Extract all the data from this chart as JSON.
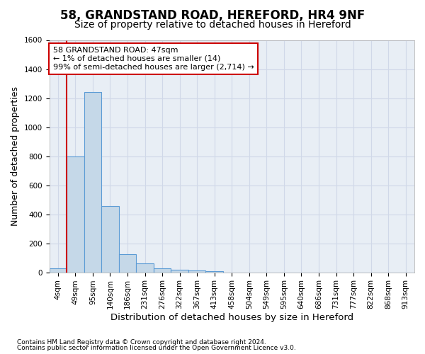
{
  "title1": "58, GRANDSTAND ROAD, HEREFORD, HR4 9NF",
  "title2": "Size of property relative to detached houses in Hereford",
  "xlabel": "Distribution of detached houses by size in Hereford",
  "ylabel": "Number of detached properties",
  "footer1": "Contains HM Land Registry data © Crown copyright and database right 2024.",
  "footer2": "Contains public sector information licensed under the Open Government Licence v3.0.",
  "bin_labels": [
    "4sqm",
    "49sqm",
    "95sqm",
    "140sqm",
    "186sqm",
    "231sqm",
    "276sqm",
    "322sqm",
    "367sqm",
    "413sqm",
    "458sqm",
    "504sqm",
    "549sqm",
    "595sqm",
    "640sqm",
    "686sqm",
    "731sqm",
    "777sqm",
    "822sqm",
    "868sqm",
    "913sqm"
  ],
  "bar_values": [
    25,
    800,
    1240,
    455,
    125,
    60,
    28,
    18,
    15,
    10,
    0,
    0,
    0,
    0,
    0,
    0,
    0,
    0,
    0,
    0,
    0
  ],
  "bar_color": "#c5d8e8",
  "bar_edge_color": "#5b9bd5",
  "grid_color": "#d0d8e8",
  "background_color": "#e8eef5",
  "vline_x_index": 1,
  "vline_color": "#cc0000",
  "annotation_text": "58 GRANDSTAND ROAD: 47sqm\n← 1% of detached houses are smaller (14)\n99% of semi-detached houses are larger (2,714) →",
  "annotation_box_color": "#cc0000",
  "ylim": [
    0,
    1600
  ],
  "yticks": [
    0,
    200,
    400,
    600,
    800,
    1000,
    1200,
    1400,
    1600
  ],
  "title1_fontsize": 12,
  "title2_fontsize": 10,
  "xlabel_fontsize": 9.5,
  "ylabel_fontsize": 9,
  "tick_fontsize": 7.5,
  "annotation_fontsize": 8
}
